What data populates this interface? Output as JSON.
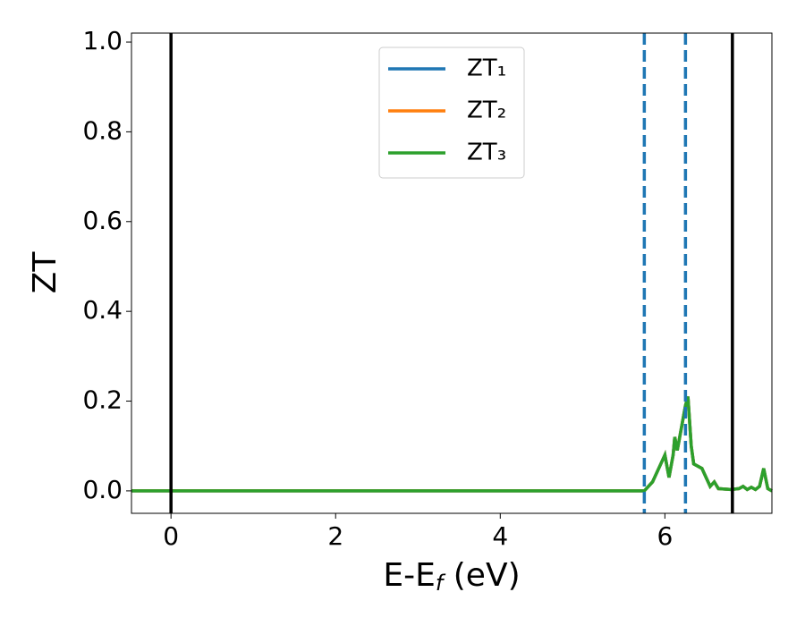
{
  "chart_data": {
    "type": "line",
    "x_label": [
      "E-E",
      "f",
      " (eV)"
    ],
    "y_label": "ZT",
    "x": [
      -0.48,
      5.75,
      5.85,
      5.95,
      6.0,
      6.05,
      6.1,
      6.12,
      6.15,
      6.2,
      6.25,
      6.28,
      6.32,
      6.35,
      6.45,
      6.5,
      6.55,
      6.6,
      6.65,
      6.8,
      6.9,
      6.95,
      7.0,
      7.05,
      7.1,
      7.15,
      7.2,
      7.25,
      7.3
    ],
    "series": [
      {
        "name": "ZT₁",
        "color": "#1f77b4",
        "values": [
          0,
          0,
          0.02,
          0.06,
          0.08,
          0.03,
          0.08,
          0.12,
          0.09,
          0.14,
          0.19,
          0.21,
          0.1,
          0.06,
          0.05,
          0.03,
          0.01,
          0.02,
          0.005,
          0.003,
          0.005,
          0.01,
          0.003,
          0.008,
          0.003,
          0.01,
          0.05,
          0.005,
          0
        ]
      },
      {
        "name": "ZT₂",
        "color": "#ff7f0e",
        "values": [
          0,
          0,
          0.02,
          0.06,
          0.08,
          0.03,
          0.08,
          0.12,
          0.09,
          0.14,
          0.19,
          0.21,
          0.1,
          0.06,
          0.05,
          0.03,
          0.01,
          0.02,
          0.005,
          0.003,
          0.005,
          0.01,
          0.003,
          0.008,
          0.003,
          0.01,
          0.05,
          0.005,
          0
        ]
      },
      {
        "name": "ZT₃",
        "color": "#2ca02c",
        "values": [
          0,
          0,
          0.02,
          0.06,
          0.08,
          0.03,
          0.08,
          0.12,
          0.09,
          0.14,
          0.19,
          0.21,
          0.1,
          0.06,
          0.05,
          0.03,
          0.01,
          0.02,
          0.005,
          0.003,
          0.005,
          0.01,
          0.003,
          0.008,
          0.003,
          0.01,
          0.05,
          0.005,
          0
        ]
      }
    ],
    "vlines": [
      {
        "x": 0,
        "color": "#000000",
        "style": "solid"
      },
      {
        "x": 5.75,
        "color": "#1f77b4",
        "style": "dashed"
      },
      {
        "x": 6.25,
        "color": "#1f77b4",
        "style": "dashed"
      },
      {
        "x": 6.82,
        "color": "#000000",
        "style": "solid"
      }
    ],
    "xlim": [
      -0.48,
      7.3
    ],
    "ylim": [
      -0.05,
      1.02
    ],
    "xticks": [
      0,
      2,
      4,
      6
    ],
    "yticks": [
      {
        "value": 0,
        "label": "0.0"
      },
      {
        "value": 0.2,
        "label": "0.2"
      },
      {
        "value": 0.4,
        "label": "0.4"
      },
      {
        "value": 0.6,
        "label": "0.6"
      },
      {
        "value": 0.8,
        "label": "0.8"
      },
      {
        "value": 1.0,
        "label": "1.0"
      }
    ],
    "legend": "upper center",
    "grid": false
  }
}
